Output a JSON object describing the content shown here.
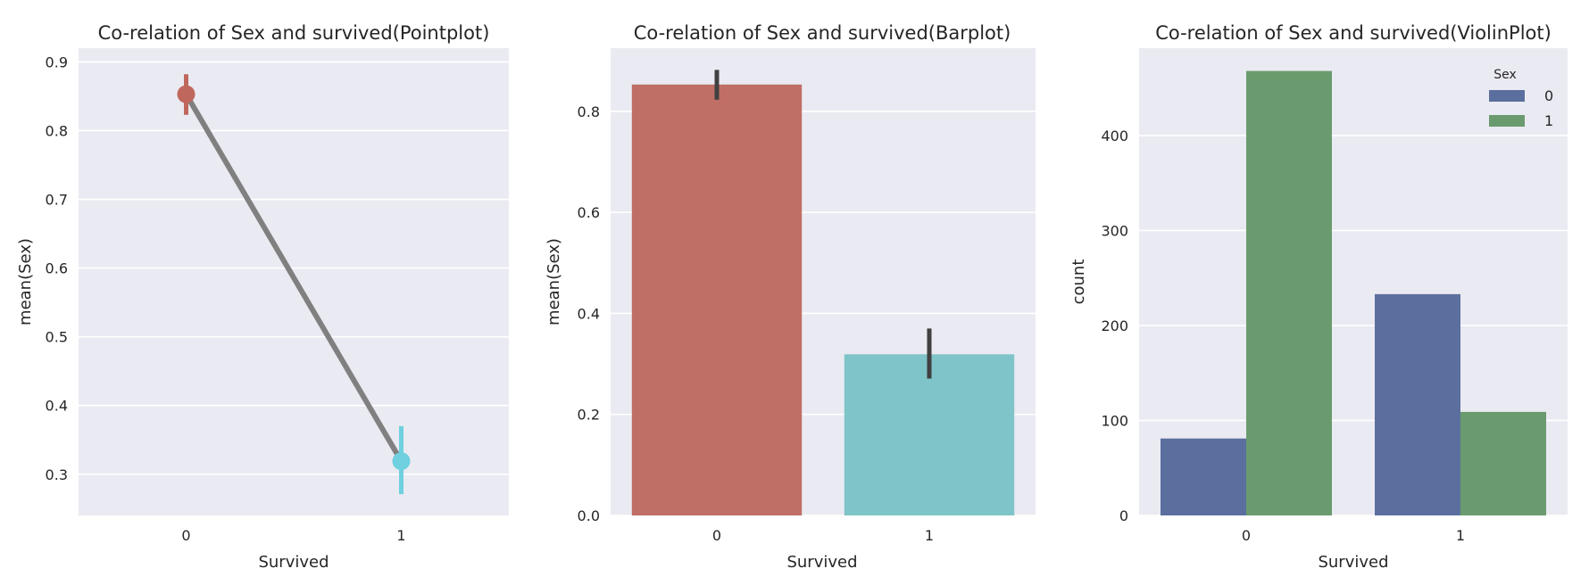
{
  "chart_data": [
    {
      "type": "line",
      "subtype": "pointplot",
      "title": "Co-relation of Sex and survived(Pointplot)",
      "xlabel": "Survived",
      "ylabel": "mean(Sex)",
      "categories": [
        "0",
        "1"
      ],
      "values": [
        0.853,
        0.319
      ],
      "ci": [
        [
          0.823,
          0.882
        ],
        [
          0.271,
          0.37
        ]
      ],
      "point_colors": [
        "#c0675d",
        "#6fd0e0"
      ],
      "line_color": "#808080",
      "ylim": [
        0.24,
        0.92
      ],
      "yticks": [
        0.3,
        0.4,
        0.5,
        0.6,
        0.7,
        0.8,
        0.9
      ],
      "ytick_labels": [
        "0.3",
        "0.4",
        "0.5",
        "0.6",
        "0.7",
        "0.8",
        "0.9"
      ],
      "grid": true
    },
    {
      "type": "bar",
      "title": "Co-relation of Sex and survived(Barplot)",
      "xlabel": "Survived",
      "ylabel": "mean(Sex)",
      "categories": [
        "0",
        "1"
      ],
      "values": [
        0.853,
        0.319
      ],
      "ci": [
        [
          0.823,
          0.882
        ],
        [
          0.271,
          0.37
        ]
      ],
      "colors": [
        "#bf6f66",
        "#7fc4c8"
      ],
      "errbar_color": "#404040",
      "ylim": [
        0,
        0.925
      ],
      "yticks": [
        0.0,
        0.2,
        0.4,
        0.6,
        0.8
      ],
      "ytick_labels": [
        "0.0",
        "0.2",
        "0.4",
        "0.6",
        "0.8"
      ],
      "grid": true
    },
    {
      "type": "bar",
      "subtype": "grouped-count",
      "title": "Co-relation of Sex and survived(ViolinPlot)",
      "xlabel": "Survived",
      "ylabel": "count",
      "categories": [
        "0",
        "1"
      ],
      "series": [
        {
          "name": "0",
          "values": [
            81,
            233
          ],
          "color": "#5b6f9e"
        },
        {
          "name": "1",
          "values": [
            468,
            109
          ],
          "color": "#6a9b6e"
        }
      ],
      "legend": {
        "title": "Sex",
        "position": "top-right"
      },
      "ylim": [
        0,
        492
      ],
      "yticks": [
        0,
        100,
        200,
        300,
        400
      ],
      "ytick_labels": [
        "0",
        "100",
        "200",
        "300",
        "400"
      ],
      "grid": true
    }
  ]
}
